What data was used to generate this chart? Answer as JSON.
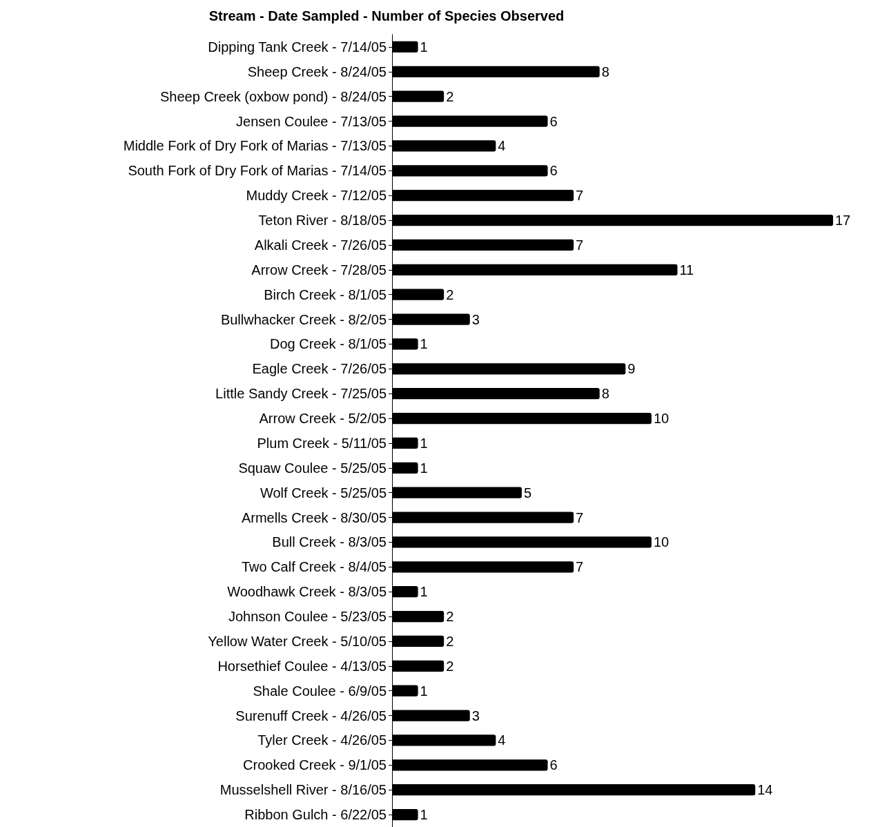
{
  "chart_data": {
    "type": "bar",
    "orientation": "horizontal",
    "title": "Stream - Date Sampled - Number of Species Observed",
    "categories": [
      "Dipping Tank Creek - 7/14/05",
      "Sheep Creek - 8/24/05",
      "Sheep Creek (oxbow pond) - 8/24/05",
      "Jensen Coulee - 7/13/05",
      "Middle Fork of Dry Fork of Marias - 7/13/05",
      "South Fork of Dry Fork of Marias - 7/14/05",
      "Muddy Creek - 7/12/05",
      "Teton River - 8/18/05",
      "Alkali Creek - 7/26/05",
      "Arrow Creek - 7/28/05",
      "Birch Creek - 8/1/05",
      "Bullwhacker Creek - 8/2/05",
      "Dog Creek - 8/1/05",
      "Eagle Creek - 7/26/05",
      "Little Sandy Creek - 7/25/05",
      "Arrow Creek - 5/2/05",
      "Plum Creek - 5/11/05",
      "Squaw Coulee - 5/25/05",
      "Wolf Creek - 5/25/05",
      "Armells Creek - 8/30/05",
      "Bull Creek - 8/3/05",
      "Two Calf Creek - 8/4/05",
      "Woodhawk Creek - 8/3/05",
      "Johnson Coulee - 5/23/05",
      "Yellow Water Creek - 5/10/05",
      "Horsethief Coulee - 4/13/05",
      "Shale Coulee - 6/9/05",
      "Surenuff Creek - 4/26/05",
      "Tyler Creek - 4/26/05",
      "Crooked Creek - 9/1/05",
      "Musselshell River - 8/16/05",
      "Ribbon Gulch - 6/22/05"
    ],
    "values": [
      1,
      8,
      2,
      6,
      4,
      6,
      7,
      17,
      7,
      11,
      2,
      3,
      1,
      9,
      8,
      10,
      1,
      1,
      5,
      7,
      10,
      7,
      1,
      2,
      2,
      2,
      1,
      3,
      4,
      6,
      14,
      1
    ],
    "color": "#000000",
    "xlim": [
      0,
      17
    ],
    "data_labels": true,
    "tick_labels": "y"
  }
}
